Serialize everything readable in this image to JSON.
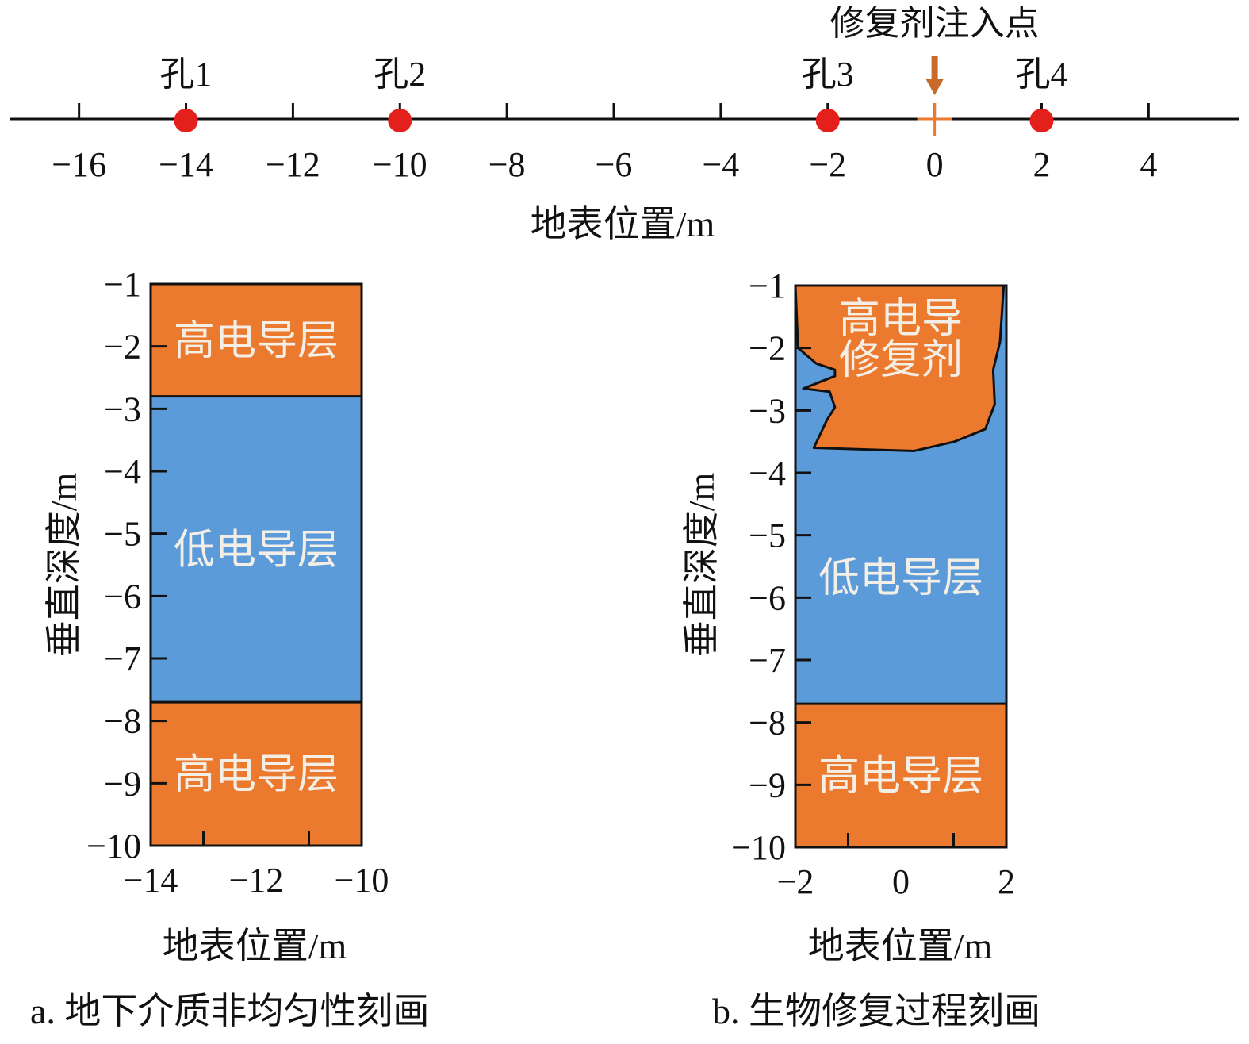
{
  "colors": {
    "high": "#ec7a2e",
    "low": "#5b9bd9",
    "hole": "#e3201b",
    "arrow": "#c86a2a",
    "outline": "#111111"
  },
  "surface": {
    "axis_title": "地表位置/m",
    "xlim": [
      -17.3,
      5.7
    ],
    "ticks": [
      -16,
      -14,
      -12,
      -10,
      -8,
      -6,
      -4,
      -2,
      0,
      2,
      4
    ],
    "tick_labels": [
      "−16",
      "−14",
      "−12",
      "−10",
      "−8",
      "−6",
      "−4",
      "−2",
      "0",
      "2",
      "4"
    ],
    "holes": [
      {
        "label": "孔1",
        "x": -14
      },
      {
        "label": "孔2",
        "x": -10
      },
      {
        "label": "孔3",
        "x": -2
      },
      {
        "label": "孔4",
        "x": 2
      }
    ],
    "injection": {
      "label": "修复剂注入点",
      "x": 0
    }
  },
  "panel_a": {
    "caption": "a. 地下介质非均匀性刻画",
    "x_title": "地表位置/m",
    "y_title": "垂直深度/m",
    "xlim": [
      -14,
      -10
    ],
    "x_ticks": [
      -14,
      -12,
      -10
    ],
    "x_tick_labels": [
      "−14",
      "−12",
      "−10"
    ],
    "x_minor_ticks": [
      -13,
      -11
    ],
    "ylim": [
      -10,
      -1
    ],
    "y_ticks": [
      -1,
      -2,
      -3,
      -4,
      -5,
      -6,
      -7,
      -8,
      -9,
      -10
    ],
    "y_tick_labels": [
      "−1",
      "−2",
      "−3",
      "−4",
      "−5",
      "−6",
      "−7",
      "−8",
      "−9",
      "−10"
    ],
    "layers": [
      {
        "label": "高电导层",
        "kind": "high",
        "top": -1,
        "bottom": -2.8
      },
      {
        "label": "低电导层",
        "kind": "low",
        "top": -2.8,
        "bottom": -7.7
      },
      {
        "label": "高电导层",
        "kind": "high",
        "top": -7.7,
        "bottom": -10
      }
    ]
  },
  "panel_b": {
    "caption": "b. 生物修复过程刻画",
    "x_title": "地表位置/m",
    "y_title": "垂直深度/m",
    "xlim": [
      -2,
      2
    ],
    "x_ticks": [
      -2,
      0,
      2
    ],
    "x_tick_labels": [
      "−2",
      "0",
      "2"
    ],
    "x_minor_ticks": [
      -1,
      1
    ],
    "ylim": [
      -10,
      -1
    ],
    "y_ticks": [
      -1,
      -2,
      -3,
      -4,
      -5,
      -6,
      -7,
      -8,
      -9,
      -10
    ],
    "y_tick_labels": [
      "−1",
      "−2",
      "−3",
      "−4",
      "−5",
      "−6",
      "−7",
      "−8",
      "−9",
      "−10"
    ],
    "layers": [
      {
        "label": "低电导层",
        "kind": "low",
        "top": -1,
        "bottom": -7.7
      },
      {
        "label": "高电导层",
        "kind": "high",
        "top": -7.7,
        "bottom": -10
      }
    ],
    "plume": {
      "label_lines": [
        "高电导",
        "修复剂"
      ],
      "kind": "high",
      "outline": [
        [
          -2,
          -1
        ],
        [
          1.95,
          -1
        ],
        [
          1.88,
          -1.9
        ],
        [
          1.75,
          -2.35
        ],
        [
          1.78,
          -2.9
        ],
        [
          1.6,
          -3.3
        ],
        [
          1.02,
          -3.5
        ],
        [
          0.25,
          -3.65
        ],
        [
          -1.65,
          -3.6
        ],
        [
          -1.4,
          -3.15
        ],
        [
          -1.25,
          -2.95
        ],
        [
          -1.35,
          -2.7
        ],
        [
          -1.85,
          -2.65
        ],
        [
          -1.25,
          -2.45
        ],
        [
          -1.25,
          -2.35
        ],
        [
          -1.6,
          -2.25
        ],
        [
          -1.95,
          -2.0
        ]
      ]
    }
  }
}
